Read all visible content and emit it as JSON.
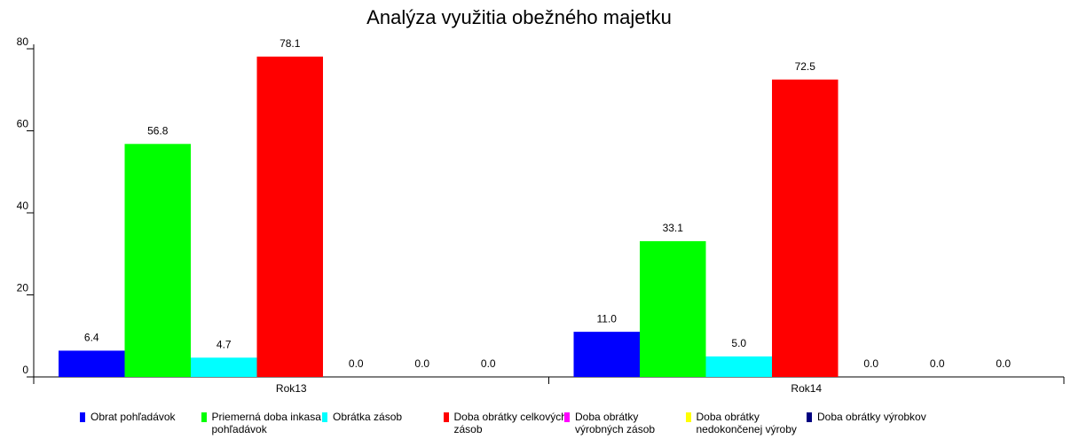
{
  "chart_data": {
    "type": "bar",
    "title": "Analýza využitia obežného majetku",
    "categories": [
      "Rok13",
      "Rok14"
    ],
    "series": [
      {
        "name": "Obrat pohľadávok",
        "color": "#0000ff",
        "values": [
          6.4,
          11
        ],
        "value_labels": [
          "6.4",
          "11.0"
        ]
      },
      {
        "name": "Priemerná doba inkasa pohľadávok",
        "color": "#00ff00",
        "values": [
          56.8,
          33.1
        ],
        "value_labels": [
          "56.8",
          "33.1"
        ]
      },
      {
        "name": "Obrátka zásob",
        "color": "#00ffff",
        "values": [
          4.7,
          5
        ],
        "value_labels": [
          "4.7",
          "5.0"
        ]
      },
      {
        "name": "Doba obrátky celkových zásob",
        "color": "#ff0000",
        "values": [
          78.1,
          72.5
        ],
        "value_labels": [
          "78.1",
          "72.5"
        ]
      },
      {
        "name": "Doba obrátky výrobných zásob",
        "color": "#ff00ff",
        "values": [
          0,
          0
        ],
        "value_labels": [
          "0.0",
          "0.0"
        ]
      },
      {
        "name": "Doba obrátky nedokončenej výroby",
        "color": "#ffff00",
        "values": [
          0,
          0
        ],
        "value_labels": [
          "0.0",
          "0.0"
        ]
      },
      {
        "name": "Doba obrátky výrobkov",
        "color": "#000080",
        "values": [
          0,
          0
        ],
        "value_labels": [
          "0.0",
          "0.0"
        ]
      }
    ],
    "ylim": [
      0,
      80
    ],
    "yticks": [
      0,
      20,
      40,
      60,
      80
    ]
  }
}
